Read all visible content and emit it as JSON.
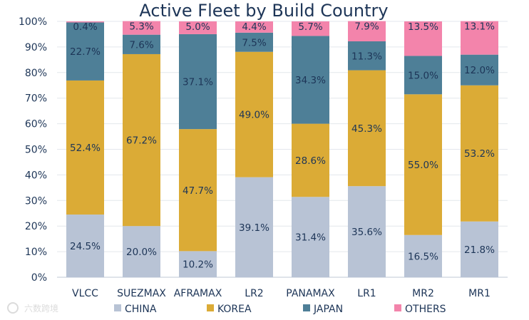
{
  "chart_data": {
    "type": "bar",
    "stacked": true,
    "title": "Active Fleet by Build Country",
    "xlabel": "",
    "ylabel": "",
    "ylim": [
      0,
      100
    ],
    "yticks": [
      "0%",
      "10%",
      "20%",
      "30%",
      "40%",
      "50%",
      "60%",
      "70%",
      "80%",
      "90%",
      "100%"
    ],
    "categories": [
      "VLCC",
      "SUEZMAX",
      "AFRAMAX",
      "LR2",
      "PANAMAX",
      "LR1",
      "MR2",
      "MR1"
    ],
    "series": [
      {
        "name": "CHINA",
        "color": "#b8c3d5",
        "values": [
          24.5,
          20.0,
          10.2,
          39.1,
          31.4,
          35.6,
          16.5,
          21.8
        ]
      },
      {
        "name": "KOREA",
        "color": "#dbab36",
        "values": [
          52.4,
          67.2,
          47.7,
          49.0,
          28.6,
          45.3,
          55.0,
          53.2
        ]
      },
      {
        "name": "JAPAN",
        "color": "#4e7f97",
        "values": [
          22.7,
          7.6,
          37.1,
          7.5,
          34.3,
          11.3,
          15.0,
          12.0
        ]
      },
      {
        "name": "OTHERS",
        "color": "#f384ab",
        "values": [
          0.4,
          5.3,
          5.0,
          4.4,
          5.7,
          7.9,
          13.5,
          13.1
        ]
      }
    ],
    "grid": true,
    "legend_position": "bottom"
  },
  "watermark": "六数跨境",
  "text_color": "#1d3557"
}
